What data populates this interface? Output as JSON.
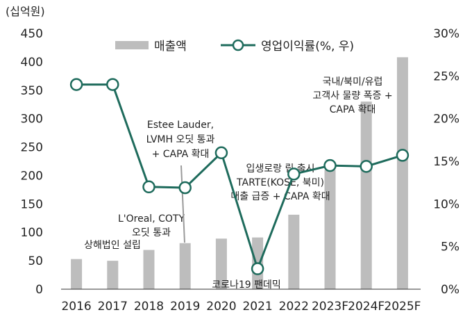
{
  "chart_data": {
    "type": "bar+line",
    "left_unit": "(십억원)",
    "categories": [
      "2016",
      "2017",
      "2018",
      "2019",
      "2020",
      "2021",
      "2022",
      "2023F",
      "2024F",
      "2025F"
    ],
    "series": [
      {
        "name": "매출액",
        "type": "bar",
        "axis": "left",
        "color": "#bdbdbd",
        "values": [
          53,
          50,
          69,
          81,
          89,
          91,
          131,
          210,
          330,
          408
        ]
      },
      {
        "name": "영업이익률(%, 우)",
        "type": "line",
        "axis": "right",
        "color": "#1e6b5c",
        "values": [
          24.0,
          24.0,
          12.0,
          11.9,
          16.0,
          2.4,
          13.5,
          14.5,
          14.4,
          15.7
        ]
      }
    ],
    "left_axis": {
      "min": 0,
      "max": 450,
      "ticks": [
        "0",
        "50",
        "100",
        "150",
        "200",
        "250",
        "300",
        "350",
        "400",
        "450"
      ]
    },
    "right_axis": {
      "min": 0,
      "max": 30,
      "ticks": [
        "0%",
        "5%",
        "10%",
        "15%",
        "20%",
        "25%",
        "30%"
      ]
    },
    "legend_position": "top-right",
    "grid": false,
    "annotations": [
      {
        "lines": [
          "상해법인 설립"
        ],
        "category": "2017"
      },
      {
        "lines": [
          "L'Oreal, COTY",
          "오딧 통과"
        ],
        "category": "2018"
      },
      {
        "lines": [
          "Estee Lauder,",
          "LVMH 오딧 통과",
          "+ CAPA 확대"
        ],
        "category": "2019"
      },
      {
        "lines": [
          "코로나19 팬데믹"
        ],
        "category": "2021"
      },
      {
        "lines": [
          "입생로랑 립 출시",
          "TARTE(KOSE, 북미)",
          "매출 급증 + CAPA 확대"
        ],
        "category": "2022"
      },
      {
        "lines": [
          "국내/북미/유럽",
          "고객사 물량 폭증 +",
          "CAPA 확대"
        ],
        "category": "2024F"
      }
    ]
  }
}
